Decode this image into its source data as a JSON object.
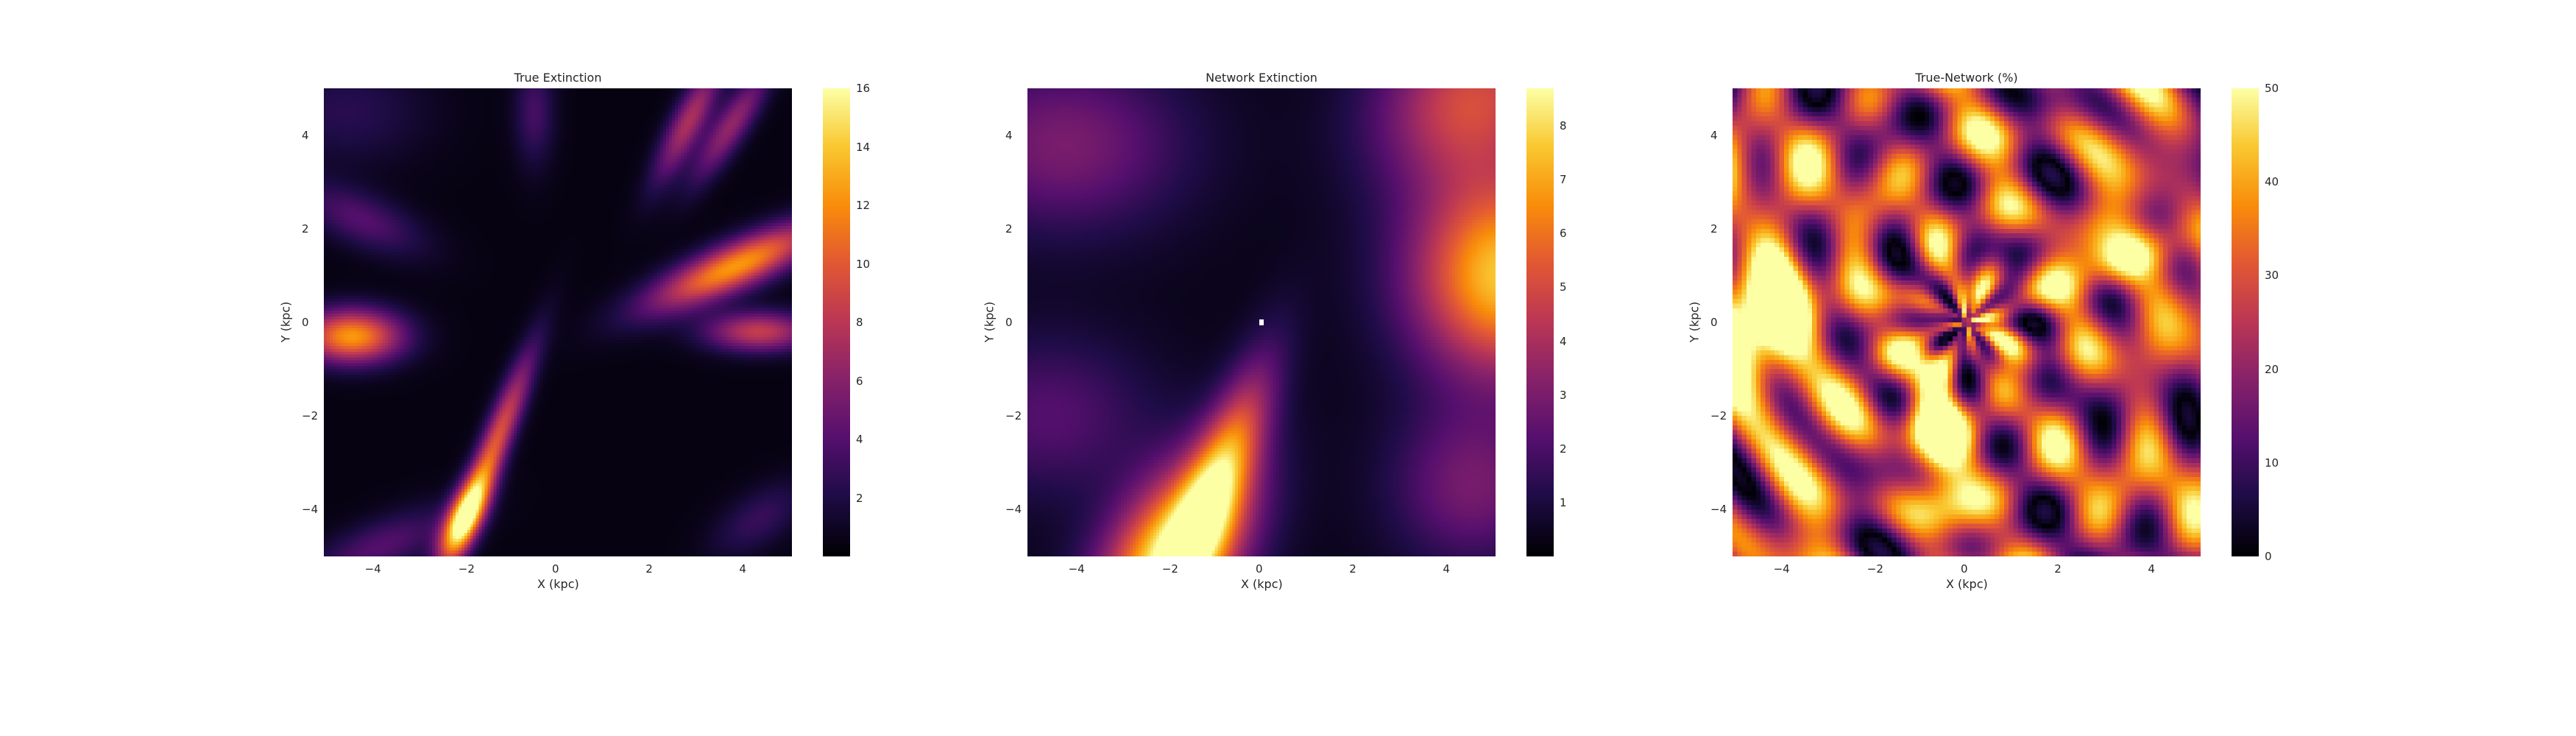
{
  "chart_data": [
    {
      "type": "heatmap",
      "title": "True Extinction",
      "xlabel": "X (kpc)",
      "ylabel": "Y (kpc)",
      "xlim": [
        -5,
        5
      ],
      "ylim": [
        -5,
        5
      ],
      "xticks": [
        "−4",
        "−2",
        "0",
        "2",
        "4"
      ],
      "xtick_values": [
        -4,
        -2,
        0,
        2,
        4
      ],
      "yticks": [
        "4",
        "2",
        "0",
        "−2",
        "−4"
      ],
      "ytick_values": [
        4,
        2,
        0,
        -2,
        -4
      ],
      "colormap": "inferno",
      "colorbar": {
        "min": 0,
        "max": 16,
        "ticks": [
          "16",
          "14",
          "12",
          "10",
          "8",
          "6",
          "4",
          "2"
        ],
        "tick_values": [
          16,
          14,
          12,
          10,
          8,
          6,
          4,
          2
        ]
      },
      "grid": false
    },
    {
      "type": "heatmap",
      "title": "Network Extinction",
      "xlabel": "X (kpc)",
      "ylabel": "Y (kpc)",
      "xlim": [
        -5,
        5
      ],
      "ylim": [
        -5,
        5
      ],
      "xticks": [
        "−4",
        "−2",
        "0",
        "2",
        "4"
      ],
      "xtick_values": [
        -4,
        -2,
        0,
        2,
        4
      ],
      "yticks": [
        "4",
        "2",
        "0",
        "−2",
        "−4"
      ],
      "ytick_values": [
        4,
        2,
        0,
        -2,
        -4
      ],
      "colormap": "inferno",
      "colorbar": {
        "min": 0,
        "max": 8.7,
        "ticks": [
          "8",
          "7",
          "6",
          "5",
          "4",
          "3",
          "2",
          "1"
        ],
        "tick_values": [
          8,
          7,
          6,
          5,
          4,
          3,
          2,
          1
        ]
      },
      "grid": false
    },
    {
      "type": "heatmap",
      "title": "True-Network (%)",
      "xlabel": "X (kpc)",
      "ylabel": "Y (kpc)",
      "xlim": [
        -5,
        5
      ],
      "ylim": [
        -5,
        5
      ],
      "xticks": [
        "−4",
        "−2",
        "0",
        "2",
        "4"
      ],
      "xtick_values": [
        -4,
        -2,
        0,
        2,
        4
      ],
      "yticks": [
        "4",
        "2",
        "0",
        "−2",
        "−4"
      ],
      "ytick_values": [
        4,
        2,
        0,
        -2,
        -4
      ],
      "colormap": "inferno",
      "colorbar": {
        "min": 0,
        "max": 50,
        "ticks": [
          "50",
          "40",
          "30",
          "20",
          "10",
          "0"
        ],
        "tick_values": [
          50,
          40,
          30,
          20,
          10,
          0
        ]
      },
      "grid": false
    }
  ]
}
